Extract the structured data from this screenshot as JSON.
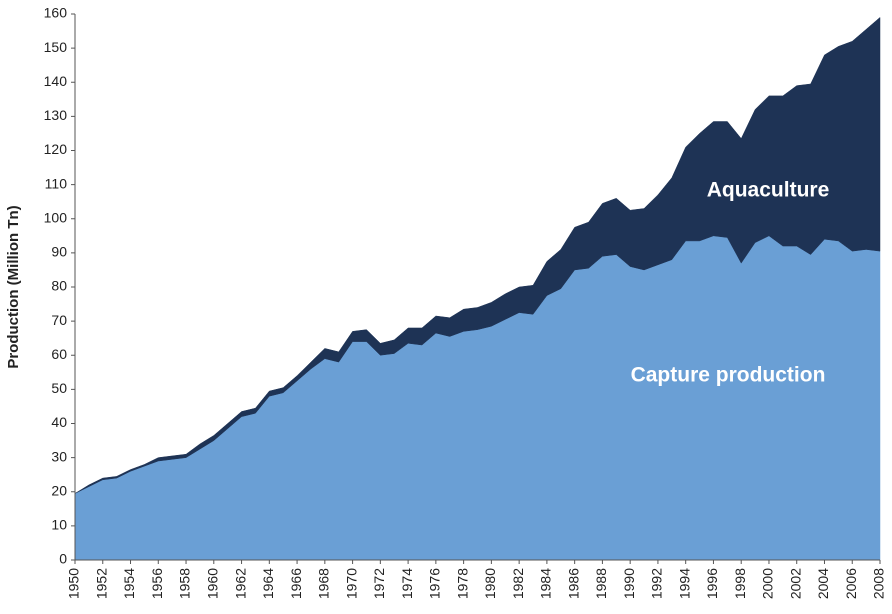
{
  "chart_data": {
    "type": "stacked_area",
    "ylabel": "Production (Million Tn)",
    "x": [
      1950,
      1951,
      1952,
      1953,
      1954,
      1955,
      1956,
      1957,
      1958,
      1959,
      1960,
      1961,
      1962,
      1963,
      1964,
      1965,
      1966,
      1967,
      1968,
      1969,
      1970,
      1971,
      1972,
      1973,
      1974,
      1975,
      1976,
      1977,
      1978,
      1979,
      1980,
      1981,
      1982,
      1983,
      1984,
      1985,
      1986,
      1987,
      1988,
      1989,
      1990,
      1991,
      1992,
      1993,
      1994,
      1995,
      1996,
      1997,
      1998,
      1999,
      2000,
      2001,
      2002,
      2003,
      2004,
      2005,
      2006,
      2007,
      2008
    ],
    "series": [
      {
        "color": "#6a9fd5",
        "values": [
          19.5,
          21.5,
          23.5,
          24,
          26,
          27.5,
          29,
          29.5,
          30,
          32.5,
          35,
          38.5,
          42,
          43,
          48,
          49,
          52.5,
          56,
          59,
          58,
          64,
          64,
          60,
          60.5,
          63.5,
          63,
          66.5,
          65.5,
          67,
          67.5,
          68.5,
          70.5,
          72.5,
          72,
          77.5,
          79.5,
          85,
          85.5,
          89,
          89.5,
          86,
          85,
          86.5,
          88,
          93.5,
          93.5,
          95,
          94.5,
          87,
          93,
          95,
          92,
          92,
          89.5,
          94,
          93.5,
          90.5,
          91,
          90.5
        ]
      },
      {
        "color": "#1e3355",
        "values": [
          0,
          0.5,
          0.5,
          0.5,
          0.5,
          0.5,
          1,
          1,
          1,
          1.5,
          1.5,
          1.5,
          1.5,
          1.5,
          1.5,
          1.5,
          1.5,
          2,
          3,
          3,
          3,
          3.5,
          3.5,
          4,
          4.5,
          5,
          5,
          5.5,
          6.5,
          6.5,
          7,
          7.5,
          7.5,
          8.5,
          10,
          11.5,
          12.5,
          13.5,
          15.5,
          16.5,
          16.5,
          18,
          20.5,
          24,
          27.5,
          31.5,
          33.5,
          34,
          36.5,
          39,
          41,
          44,
          47,
          50,
          54,
          57,
          61.5,
          64.5,
          68.5
        ]
      }
    ],
    "annotations": [
      "Aquaculture",
      "Capture production"
    ],
    "xlim": [
      1950,
      2008
    ],
    "xticks": [
      1950,
      1952,
      1954,
      1956,
      1958,
      1960,
      1962,
      1964,
      1966,
      1968,
      1970,
      1972,
      1974,
      1976,
      1978,
      1980,
      1982,
      1984,
      1986,
      1988,
      1990,
      1992,
      1994,
      1996,
      1998,
      2000,
      2002,
      2004,
      2006,
      2008
    ],
    "ylim": [
      0,
      160
    ],
    "yticks": [
      0,
      10,
      20,
      30,
      40,
      50,
      60,
      70,
      80,
      90,
      100,
      110,
      120,
      130,
      140,
      150,
      160
    ]
  }
}
